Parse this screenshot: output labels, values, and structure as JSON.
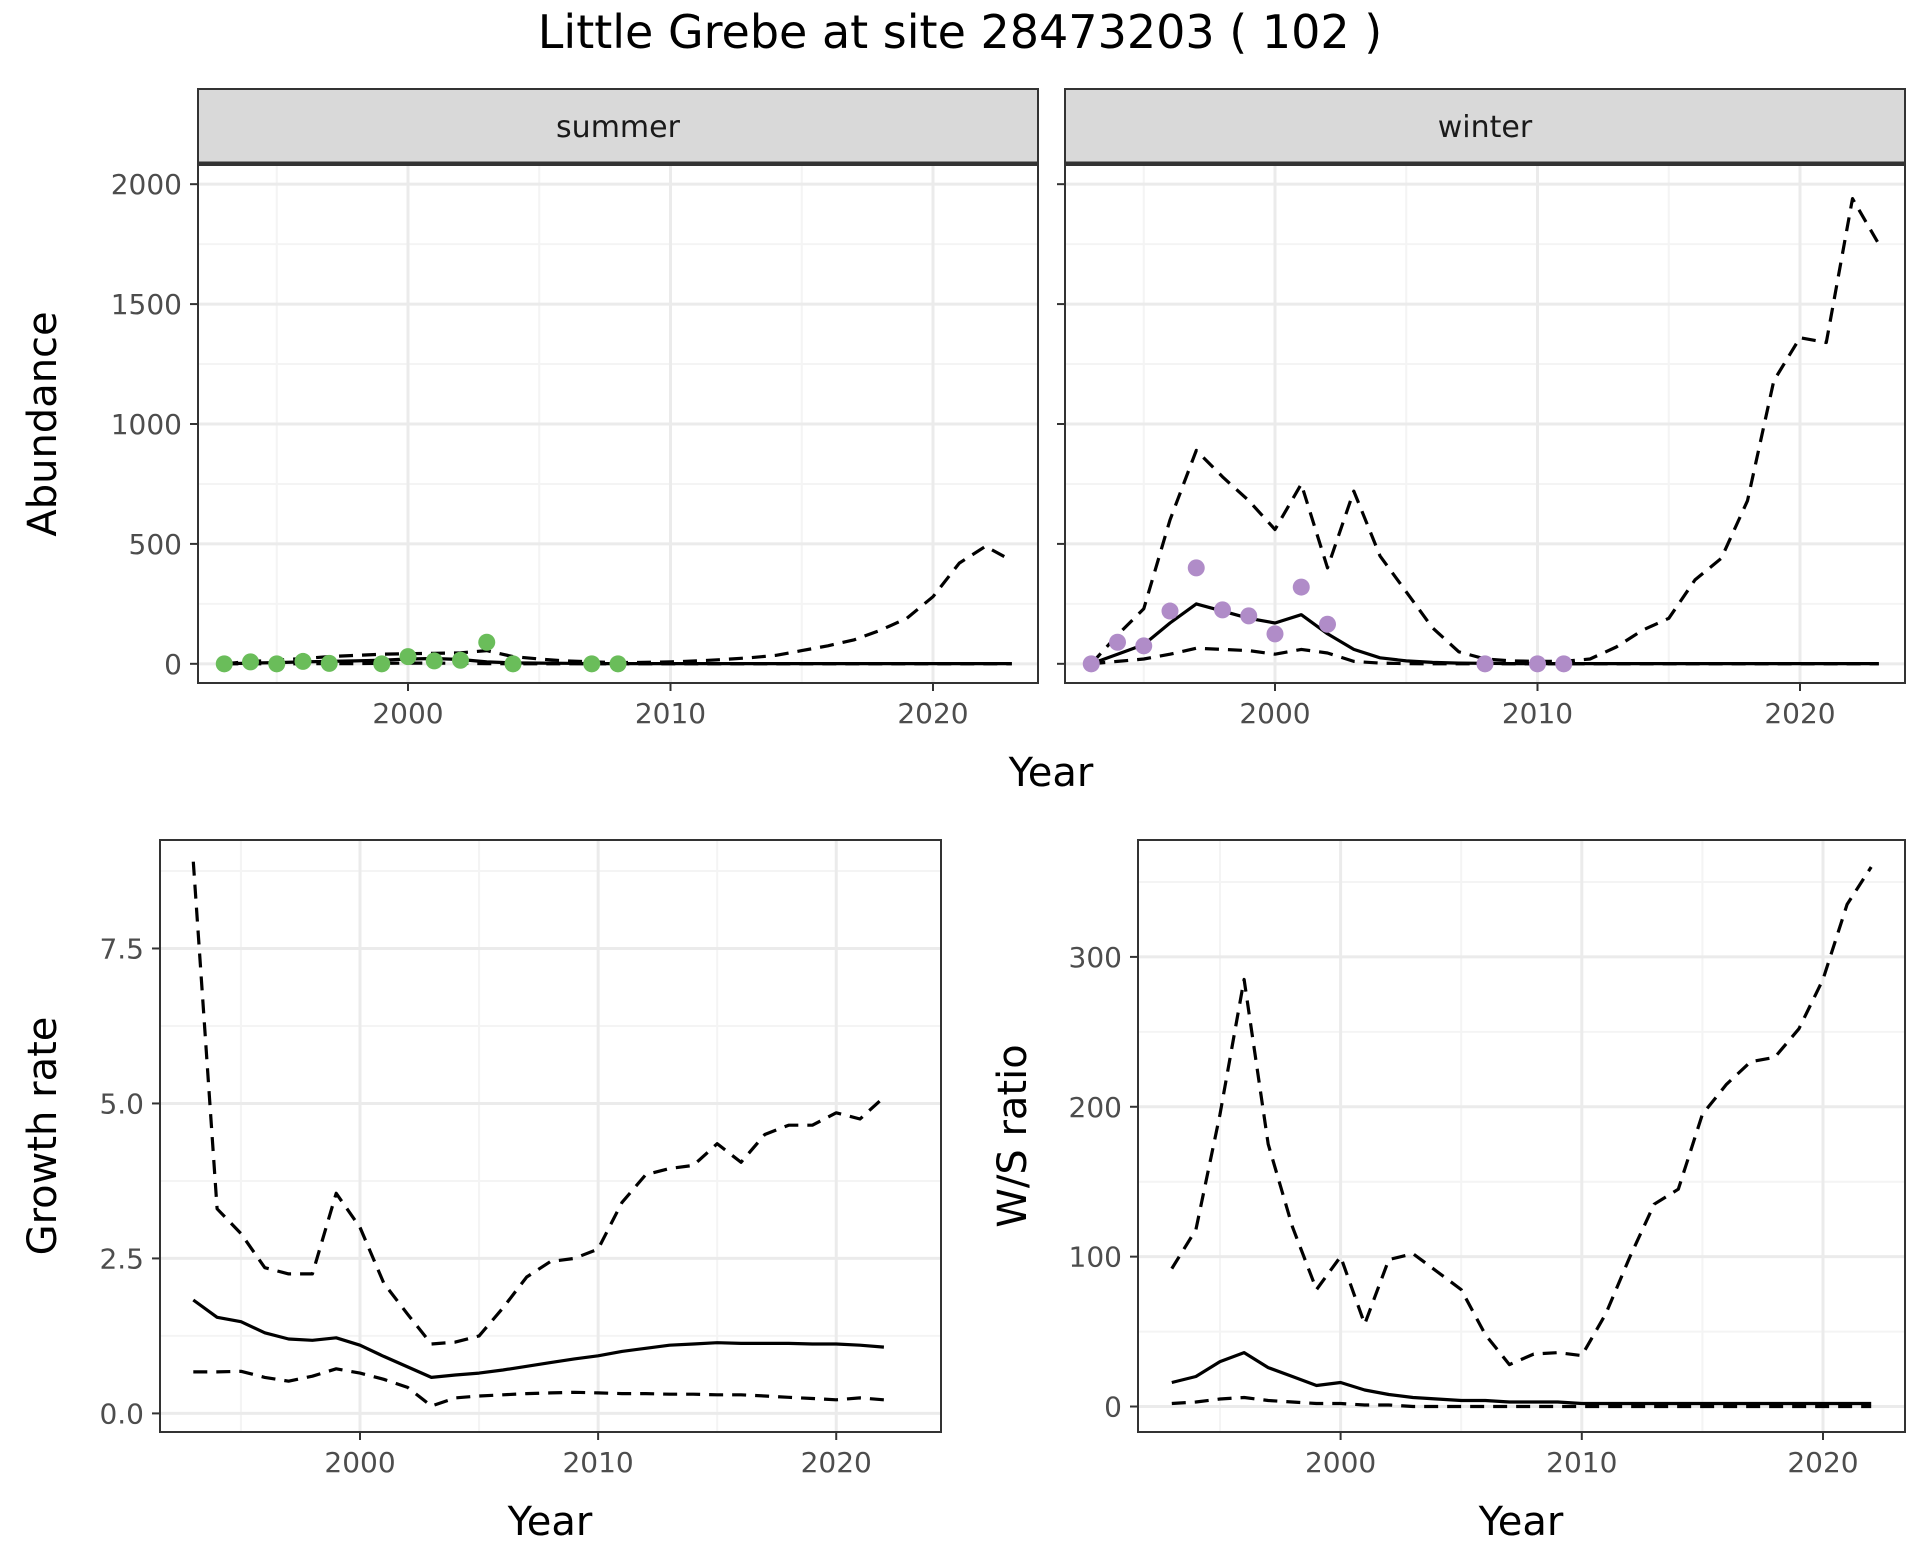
{
  "title": "Little Grebe at site 28473203 ( 102 )",
  "colors": {
    "summer_points": "#6abd5a",
    "winter_points": "#b08cc8",
    "line": "#000000",
    "grid_major": "#ebebeb",
    "grid_minor": "#f4f4f4",
    "strip_bg": "#d9d9d9",
    "panel_border": "#333333"
  },
  "chart_data": [
    {
      "type": "line",
      "panel": "summer",
      "strip_label": "summer",
      "xlabel": "Year",
      "ylabel": "Abundance",
      "xlim": [
        1992,
        2024
      ],
      "ylim": [
        -80,
        2080
      ],
      "x_ticks": [
        2000,
        2010,
        2020
      ],
      "y_ticks": [
        0,
        500,
        1000,
        1500,
        2000
      ],
      "grid": true,
      "x": [
        1993,
        1994,
        1995,
        1996,
        1997,
        1998,
        1999,
        2000,
        2001,
        2002,
        2003,
        2004,
        2005,
        2006,
        2007,
        2008,
        2009,
        2010,
        2011,
        2012,
        2013,
        2014,
        2015,
        2016,
        2017,
        2018,
        2019,
        2020,
        2021,
        2022,
        2023
      ],
      "series": [
        {
          "role": "mean",
          "style": "solid",
          "values": [
            0,
            3,
            5,
            8,
            10,
            12,
            15,
            20,
            22,
            18,
            8,
            4,
            3,
            2,
            1,
            1,
            1,
            1,
            1,
            1,
            1,
            1,
            1,
            1,
            1,
            1,
            1,
            1,
            1,
            1,
            1
          ]
        },
        {
          "role": "upper",
          "style": "dashed",
          "values": [
            0,
            10,
            15,
            22,
            30,
            35,
            40,
            42,
            44,
            46,
            55,
            30,
            20,
            12,
            8,
            5,
            6,
            8,
            12,
            18,
            25,
            35,
            55,
            75,
            100,
            140,
            190,
            280,
            420,
            490,
            430
          ]
        },
        {
          "role": "lower",
          "style": "dashed",
          "values": [
            0,
            0,
            0,
            0,
            1,
            1,
            2,
            3,
            3,
            2,
            1,
            0,
            0,
            0,
            0,
            0,
            0,
            0,
            0,
            0,
            0,
            0,
            0,
            0,
            0,
            0,
            0,
            0,
            0,
            0,
            0
          ]
        }
      ],
      "points": {
        "x": [
          1993,
          1994,
          1995,
          1996,
          1997,
          1999,
          2000,
          2001,
          2002,
          2003,
          2004,
          2007,
          2008
        ],
        "y": [
          0,
          8,
          0,
          10,
          2,
          0,
          30,
          12,
          15,
          90,
          0,
          0,
          0
        ]
      }
    },
    {
      "type": "line",
      "panel": "winter",
      "strip_label": "winter",
      "xlabel": "Year",
      "ylabel": "Abundance",
      "xlim": [
        1992,
        2024
      ],
      "ylim": [
        -80,
        2080
      ],
      "x_ticks": [
        2000,
        2010,
        2020
      ],
      "y_ticks": [
        0,
        500,
        1000,
        1500,
        2000
      ],
      "grid": true,
      "x": [
        1993,
        1994,
        1995,
        1996,
        1997,
        1998,
        1999,
        2000,
        2001,
        2002,
        2003,
        2004,
        2005,
        2006,
        2007,
        2008,
        2009,
        2010,
        2011,
        2012,
        2013,
        2014,
        2015,
        2016,
        2017,
        2018,
        2019,
        2020,
        2021,
        2022,
        2023
      ],
      "series": [
        {
          "role": "mean",
          "style": "solid",
          "values": [
            0,
            40,
            80,
            170,
            250,
            220,
            190,
            170,
            205,
            125,
            60,
            25,
            12,
            6,
            3,
            2,
            1,
            1,
            1,
            1,
            1,
            1,
            1,
            1,
            1,
            1,
            1,
            1,
            1,
            1,
            1
          ]
        },
        {
          "role": "upper",
          "style": "dashed",
          "values": [
            0,
            120,
            230,
            600,
            890,
            780,
            680,
            560,
            750,
            400,
            720,
            450,
            300,
            150,
            50,
            20,
            12,
            10,
            10,
            20,
            70,
            140,
            190,
            350,
            440,
            680,
            1180,
            1360,
            1340,
            1940,
            1750
          ]
        },
        {
          "role": "lower",
          "style": "dashed",
          "values": [
            0,
            10,
            20,
            40,
            65,
            60,
            55,
            40,
            60,
            45,
            10,
            3,
            1,
            0,
            0,
            0,
            0,
            0,
            0,
            0,
            0,
            0,
            0,
            0,
            0,
            0,
            0,
            0,
            0,
            0,
            0
          ]
        }
      ],
      "points": {
        "x": [
          1993,
          1994,
          1995,
          1996,
          1997,
          1998,
          1999,
          2000,
          2001,
          2002,
          2008,
          2010,
          2011
        ],
        "y": [
          0,
          90,
          75,
          220,
          400,
          225,
          200,
          125,
          320,
          165,
          0,
          0,
          0
        ]
      }
    },
    {
      "type": "line",
      "panel": "growth",
      "xlabel": "Year",
      "ylabel": "Growth rate",
      "xlim": [
        1991.6,
        2024.4
      ],
      "ylim": [
        -0.3,
        9.25
      ],
      "x_ticks": [
        2000,
        2010,
        2020
      ],
      "y_ticks": [
        0.0,
        2.5,
        5.0,
        7.5
      ],
      "y_tick_labels": [
        "0.0",
        "2.5",
        "5.0",
        "7.5"
      ],
      "grid": true,
      "x": [
        1993,
        1994,
        1995,
        1996,
        1997,
        1998,
        1999,
        2000,
        2001,
        2002,
        2003,
        2004,
        2005,
        2006,
        2007,
        2008,
        2009,
        2010,
        2011,
        2012,
        2013,
        2014,
        2015,
        2016,
        2017,
        2018,
        2019,
        2020,
        2021,
        2022
      ],
      "series": [
        {
          "role": "mean",
          "style": "solid",
          "values": [
            1.83,
            1.55,
            1.48,
            1.3,
            1.2,
            1.18,
            1.22,
            1.1,
            0.92,
            0.75,
            0.58,
            0.62,
            0.65,
            0.7,
            0.76,
            0.82,
            0.88,
            0.93,
            1.0,
            1.05,
            1.1,
            1.12,
            1.14,
            1.13,
            1.13,
            1.13,
            1.12,
            1.12,
            1.1,
            1.07
          ]
        },
        {
          "role": "upper",
          "style": "dashed",
          "values": [
            8.9,
            3.3,
            2.9,
            2.35,
            2.25,
            2.25,
            3.55,
            3.0,
            2.1,
            1.6,
            1.12,
            1.15,
            1.25,
            1.7,
            2.2,
            2.45,
            2.5,
            2.65,
            3.4,
            3.85,
            3.95,
            4.0,
            4.35,
            4.05,
            4.5,
            4.65,
            4.65,
            4.85,
            4.75,
            5.1
          ]
        },
        {
          "role": "lower",
          "style": "dashed",
          "values": [
            0.67,
            0.67,
            0.68,
            0.58,
            0.52,
            0.6,
            0.72,
            0.65,
            0.55,
            0.42,
            0.12,
            0.25,
            0.28,
            0.3,
            0.32,
            0.33,
            0.34,
            0.33,
            0.32,
            0.32,
            0.31,
            0.31,
            0.3,
            0.3,
            0.28,
            0.26,
            0.24,
            0.22,
            0.25,
            0.22
          ]
        }
      ]
    },
    {
      "type": "line",
      "panel": "ratio",
      "xlabel": "Year",
      "ylabel": "W/S ratio",
      "xlim": [
        1991.6,
        2023.4
      ],
      "ylim": [
        -17,
        378
      ],
      "x_ticks": [
        2000,
        2010,
        2020
      ],
      "y_ticks": [
        0,
        100,
        200,
        300
      ],
      "grid": true,
      "x": [
        1993,
        1994,
        1995,
        1996,
        1997,
        1998,
        1999,
        2000,
        2001,
        2002,
        2003,
        2004,
        2005,
        2006,
        2007,
        2008,
        2009,
        2010,
        2011,
        2012,
        2013,
        2014,
        2015,
        2016,
        2017,
        2018,
        2019,
        2020,
        2021,
        2022
      ],
      "series": [
        {
          "role": "mean",
          "style": "solid",
          "values": [
            16,
            20,
            30,
            36,
            26,
            20,
            14,
            16,
            11,
            8,
            6,
            5,
            4,
            4,
            3,
            3,
            3,
            2,
            2,
            2,
            2,
            2,
            2,
            2,
            2,
            2,
            2,
            2,
            2,
            2
          ]
        },
        {
          "role": "lower",
          "style": "dashed",
          "values": [
            2,
            3,
            5,
            6,
            4,
            3,
            2,
            2,
            1,
            1,
            0,
            0,
            0,
            0,
            0,
            0,
            0,
            0,
            0,
            0,
            0,
            0,
            0,
            0,
            0,
            0,
            0,
            0,
            0,
            0
          ]
        },
        {
          "role": "upper",
          "style": "dashed",
          "values": [
            92,
            118,
            195,
            285,
            175,
            120,
            78,
            100,
            55,
            98,
            102,
            90,
            78,
            48,
            28,
            35,
            36,
            34,
            62,
            100,
            135,
            145,
            195,
            215,
            230,
            233,
            252,
            285,
            335,
            360
          ]
        }
      ]
    }
  ]
}
